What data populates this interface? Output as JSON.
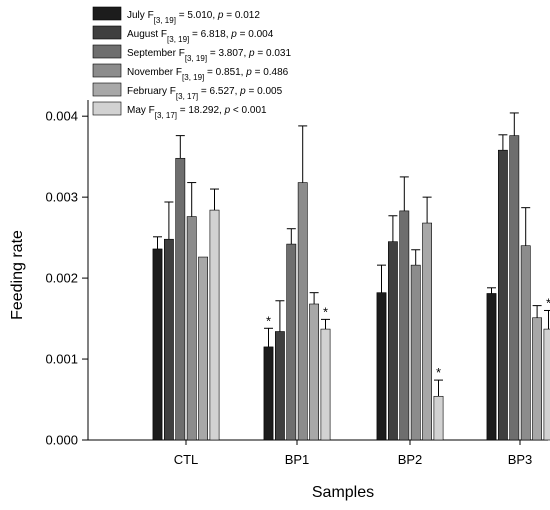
{
  "chart_data": {
    "type": "bar",
    "xlabel": "Samples",
    "ylabel": "Feeding rate",
    "ylim": [
      0,
      0.0042
    ],
    "yticks": [
      "0.000",
      "0.001",
      "0.002",
      "0.003",
      "0.004"
    ],
    "categories": [
      "CTL",
      "BP1",
      "BP2",
      "BP3"
    ],
    "legend_position": "top-left",
    "series": [
      {
        "name": "July",
        "stat_main": "F",
        "stat_sub": "[3, 19]",
        "stat_rest": " = 5.010, ",
        "p_label": "p",
        "p_rest": " = 0.012",
        "color": "#1c1c1c",
        "values": [
          0.00236,
          0.00115,
          0.00182,
          0.00181
        ],
        "errors": [
          0.00015,
          0.00023,
          0.00034,
          7e-05
        ],
        "significant": [
          false,
          true,
          false,
          false
        ]
      },
      {
        "name": "August",
        "stat_main": "F",
        "stat_sub": "[3, 19]",
        "stat_rest": " = 6.818, ",
        "p_label": "p",
        "p_rest": " = 0.004",
        "color": "#3f3f3f",
        "values": [
          0.00248,
          0.00134,
          0.00245,
          0.00358
        ],
        "errors": [
          0.00046,
          0.00038,
          0.00032,
          0.00019
        ],
        "significant": [
          false,
          false,
          false,
          false
        ]
      },
      {
        "name": "September",
        "stat_main": "F",
        "stat_sub": "[3, 19]",
        "stat_rest": " = 3.807, ",
        "p_label": "p",
        "p_rest": " = 0.031",
        "color": "#6e6e6e",
        "values": [
          0.00348,
          0.00242,
          0.00283,
          0.00376
        ],
        "errors": [
          0.00028,
          0.00019,
          0.00042,
          0.00028
        ],
        "significant": [
          false,
          false,
          false,
          false
        ]
      },
      {
        "name": "November",
        "stat_main": "F",
        "stat_sub": "[3, 19]",
        "stat_rest": " = 0.851, ",
        "p_label": "p",
        "p_rest": " = 0.486",
        "color": "#8c8c8c",
        "values": [
          0.00276,
          0.00318,
          0.00216,
          0.0024
        ],
        "errors": [
          0.00042,
          0.0007,
          0.00019,
          0.00047
        ],
        "significant": [
          false,
          false,
          false,
          false
        ]
      },
      {
        "name": "February",
        "stat_main": "F",
        "stat_sub": "[3, 17]",
        "stat_rest": " = 6.527, ",
        "p_label": "p",
        "p_rest": " = 0.005",
        "color": "#a8a8a8",
        "values": [
          0.00226,
          0.00168,
          0.00268,
          0.00151
        ],
        "errors": [
          0.0,
          0.00014,
          0.00032,
          0.00015
        ],
        "significant": [
          false,
          false,
          false,
          false
        ]
      },
      {
        "name": "May",
        "stat_main": "F",
        "stat_sub": "[3, 17]",
        "stat_rest": " = 18.292, ",
        "p_label": "p",
        "p_rest": " < 0.001",
        "color": "#d2d2d2",
        "values": [
          0.00284,
          0.00137,
          0.00054,
          0.00137
        ],
        "errors": [
          0.00026,
          0.00012,
          0.0002,
          0.00023
        ],
        "significant": [
          false,
          true,
          true,
          true
        ]
      }
    ],
    "significance_marker": "*"
  }
}
